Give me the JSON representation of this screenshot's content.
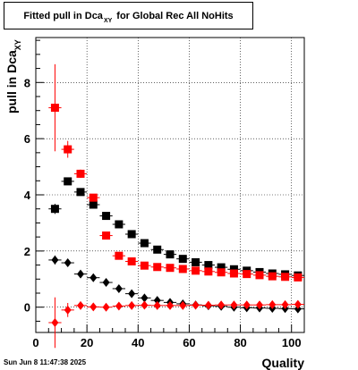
{
  "chart_data": {
    "type": "scatter",
    "title": "Fitted pull in Dca",
    "title_subscript": "XY",
    "title_suffix": "for Global Rec All NoHits",
    "xlabel": "Quality",
    "ylabel": "pull in Dca",
    "ylabel_subscript": "XY",
    "xlim": [
      0,
      105
    ],
    "ylim": [
      -0.9,
      9.6
    ],
    "x_ticks": [
      0,
      20,
      40,
      60,
      80,
      100
    ],
    "y_ticks": [
      0,
      2,
      4,
      6,
      8
    ],
    "grid": true,
    "series": [
      {
        "color": "#000000",
        "marker": "square",
        "points": [
          {
            "x": 7.5,
            "y": 3.5,
            "yerr": 0.18
          },
          {
            "x": 12.5,
            "y": 4.48,
            "yerr": 0.1
          },
          {
            "x": 17.5,
            "y": 4.1,
            "yerr": 0.06
          },
          {
            "x": 22.5,
            "y": 3.65,
            "yerr": 0.05
          },
          {
            "x": 27.5,
            "y": 3.25,
            "yerr": 0.04
          },
          {
            "x": 32.5,
            "y": 2.95,
            "yerr": 0.04
          },
          {
            "x": 37.5,
            "y": 2.6,
            "yerr": 0.03
          },
          {
            "x": 42.5,
            "y": 2.28,
            "yerr": 0.03
          },
          {
            "x": 47.5,
            "y": 2.05,
            "yerr": 0.03
          },
          {
            "x": 52.5,
            "y": 1.88,
            "yerr": 0.03
          },
          {
            "x": 57.5,
            "y": 1.72,
            "yerr": 0.03
          },
          {
            "x": 62.5,
            "y": 1.6,
            "yerr": 0.03
          },
          {
            "x": 67.5,
            "y": 1.5,
            "yerr": 0.03
          },
          {
            "x": 72.5,
            "y": 1.42,
            "yerr": 0.03
          },
          {
            "x": 77.5,
            "y": 1.35,
            "yerr": 0.03
          },
          {
            "x": 82.5,
            "y": 1.3,
            "yerr": 0.03
          },
          {
            "x": 87.5,
            "y": 1.25,
            "yerr": 0.03
          },
          {
            "x": 92.5,
            "y": 1.2,
            "yerr": 0.03
          },
          {
            "x": 97.5,
            "y": 1.17,
            "yerr": 0.03
          },
          {
            "x": 102.5,
            "y": 1.13,
            "yerr": 0.03
          }
        ]
      },
      {
        "color": "#ff0000",
        "marker": "square",
        "points": [
          {
            "x": 7.5,
            "y": 7.1,
            "yerr": 1.55
          },
          {
            "x": 12.5,
            "y": 5.62,
            "yerr": 0.3
          },
          {
            "x": 17.5,
            "y": 4.75,
            "yerr": 0.15
          },
          {
            "x": 22.5,
            "y": 3.9,
            "yerr": 0.1
          },
          {
            "x": 27.5,
            "y": 2.55,
            "yerr": 0.06
          },
          {
            "x": 32.5,
            "y": 1.83,
            "yerr": 0.05
          },
          {
            "x": 37.5,
            "y": 1.63,
            "yerr": 0.04
          },
          {
            "x": 42.5,
            "y": 1.48,
            "yerr": 0.04
          },
          {
            "x": 47.5,
            "y": 1.43,
            "yerr": 0.04
          },
          {
            "x": 52.5,
            "y": 1.4,
            "yerr": 0.04
          },
          {
            "x": 57.5,
            "y": 1.36,
            "yerr": 0.04
          },
          {
            "x": 62.5,
            "y": 1.3,
            "yerr": 0.04
          },
          {
            "x": 67.5,
            "y": 1.27,
            "yerr": 0.04
          },
          {
            "x": 72.5,
            "y": 1.24,
            "yerr": 0.04
          },
          {
            "x": 77.5,
            "y": 1.2,
            "yerr": 0.04
          },
          {
            "x": 82.5,
            "y": 1.18,
            "yerr": 0.04
          },
          {
            "x": 87.5,
            "y": 1.14,
            "yerr": 0.04
          },
          {
            "x": 92.5,
            "y": 1.1,
            "yerr": 0.04
          },
          {
            "x": 97.5,
            "y": 1.08,
            "yerr": 0.04
          },
          {
            "x": 102.5,
            "y": 1.06,
            "yerr": 0.04
          }
        ]
      },
      {
        "color": "#000000",
        "marker": "diamond",
        "points": [
          {
            "x": 7.5,
            "y": 1.68,
            "yerr": 0.16
          },
          {
            "x": 12.5,
            "y": 1.58,
            "yerr": 0.08
          },
          {
            "x": 17.5,
            "y": 1.18,
            "yerr": 0.06
          },
          {
            "x": 22.5,
            "y": 1.05,
            "yerr": 0.05
          },
          {
            "x": 27.5,
            "y": 0.88,
            "yerr": 0.04
          },
          {
            "x": 32.5,
            "y": 0.66,
            "yerr": 0.04
          },
          {
            "x": 37.5,
            "y": 0.48,
            "yerr": 0.03
          },
          {
            "x": 42.5,
            "y": 0.33,
            "yerr": 0.03
          },
          {
            "x": 47.5,
            "y": 0.24,
            "yerr": 0.03
          },
          {
            "x": 52.5,
            "y": 0.17,
            "yerr": 0.03
          },
          {
            "x": 57.5,
            "y": 0.12,
            "yerr": 0.03
          },
          {
            "x": 62.5,
            "y": 0.08,
            "yerr": 0.03
          },
          {
            "x": 67.5,
            "y": 0.05,
            "yerr": 0.03
          },
          {
            "x": 72.5,
            "y": 0.03,
            "yerr": 0.03
          },
          {
            "x": 77.5,
            "y": 0.0,
            "yerr": 0.03
          },
          {
            "x": 82.5,
            "y": -0.02,
            "yerr": 0.03
          },
          {
            "x": 87.5,
            "y": -0.03,
            "yerr": 0.03
          },
          {
            "x": 92.5,
            "y": -0.04,
            "yerr": 0.03
          },
          {
            "x": 97.5,
            "y": -0.05,
            "yerr": 0.03
          },
          {
            "x": 102.5,
            "y": -0.06,
            "yerr": 0.03
          }
        ]
      },
      {
        "color": "#ff0000",
        "marker": "diamond",
        "points": [
          {
            "x": 7.5,
            "y": -0.55,
            "yerr": 0.9
          },
          {
            "x": 12.5,
            "y": -0.1,
            "yerr": 0.25
          },
          {
            "x": 17.5,
            "y": 0.06,
            "yerr": 0.1
          },
          {
            "x": 22.5,
            "y": 0.01,
            "yerr": 0.06
          },
          {
            "x": 27.5,
            "y": 0.0,
            "yerr": 0.05
          },
          {
            "x": 32.5,
            "y": 0.04,
            "yerr": 0.04
          },
          {
            "x": 37.5,
            "y": 0.06,
            "yerr": 0.04
          },
          {
            "x": 42.5,
            "y": 0.07,
            "yerr": 0.04
          },
          {
            "x": 47.5,
            "y": 0.06,
            "yerr": 0.04
          },
          {
            "x": 52.5,
            "y": 0.06,
            "yerr": 0.04
          },
          {
            "x": 57.5,
            "y": 0.06,
            "yerr": 0.04
          },
          {
            "x": 62.5,
            "y": 0.07,
            "yerr": 0.04
          },
          {
            "x": 67.5,
            "y": 0.07,
            "yerr": 0.04
          },
          {
            "x": 72.5,
            "y": 0.08,
            "yerr": 0.04
          },
          {
            "x": 77.5,
            "y": 0.08,
            "yerr": 0.04
          },
          {
            "x": 82.5,
            "y": 0.08,
            "yerr": 0.04
          },
          {
            "x": 87.5,
            "y": 0.08,
            "yerr": 0.04
          },
          {
            "x": 92.5,
            "y": 0.09,
            "yerr": 0.04
          },
          {
            "x": 97.5,
            "y": 0.09,
            "yerr": 0.04
          },
          {
            "x": 102.5,
            "y": 0.1,
            "yerr": 0.04
          }
        ]
      }
    ]
  },
  "timestamp": "Sun Jun  8 11:47:38 2025"
}
